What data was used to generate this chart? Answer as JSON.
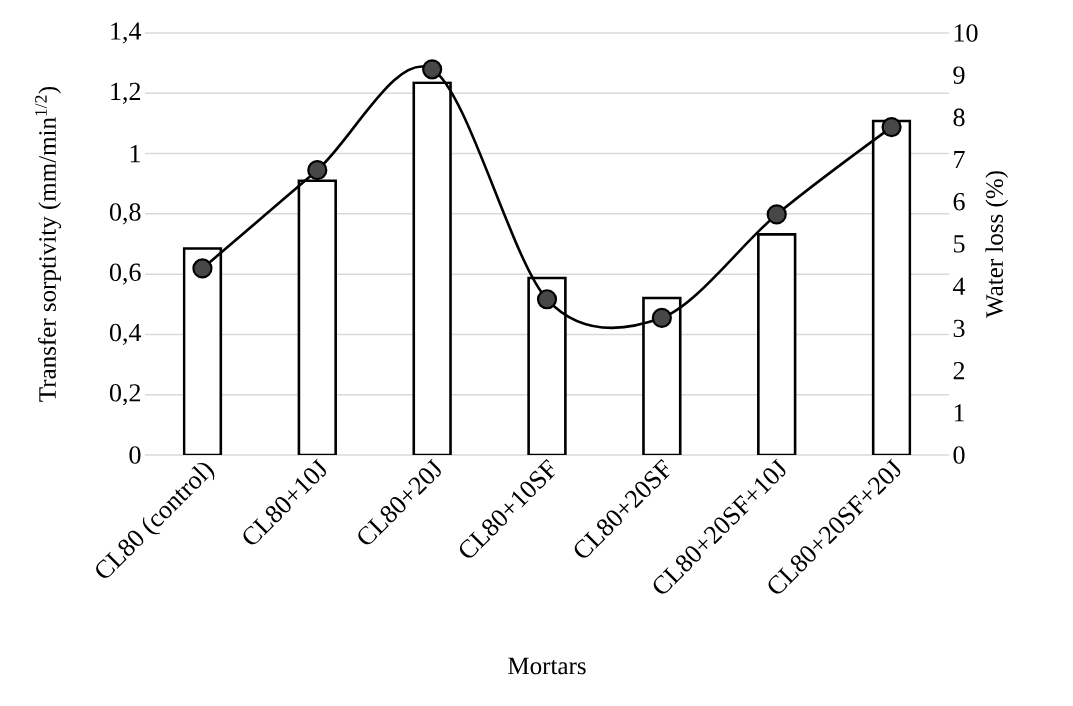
{
  "chart_data": {
    "type": "bar",
    "xlabel": "Mortars",
    "ylabel": "Transfer sorptivity (mm/min$^{1/2}$)",
    "y2label": "Water loss (%)",
    "categories": [
      "CL80 (control)",
      "CL80+10J",
      "CL80+20J",
      "CL80+10SF",
      "CL80+20SF",
      "CL80+20SF+10J",
      "CL80+20SF+20J"
    ],
    "series": [
      {
        "color": "#ffffff",
        "values": [
          0.685,
          0.91,
          1.235,
          0.587,
          0.521,
          0.732,
          1.108
        ]
      },
      {
        "type": "line",
        "axis": "y2",
        "color": "#000000",
        "marker": "circle",
        "values": [
          4.42,
          6.75,
          9.14,
          3.69,
          3.25,
          5.7,
          7.77
        ]
      }
    ],
    "ylim": [
      0,
      1.4
    ],
    "yticks": [
      0,
      {
        "value": 0.2,
        "label": "0,2"
      },
      {
        "value": 0.4,
        "label": "0,4"
      },
      {
        "value": 0.6,
        "label": "0,6"
      },
      {
        "value": 0.8,
        "label": "0,8"
      },
      1,
      {
        "value": 1.2,
        "label": "1,2"
      },
      {
        "value": 1.4,
        "label": "1,4"
      }
    ],
    "y2lim": [
      0,
      10
    ],
    "y2ticks": [
      0,
      1,
      2,
      3,
      4,
      5,
      6,
      7,
      8,
      9,
      10
    ],
    "grid": "y"
  }
}
